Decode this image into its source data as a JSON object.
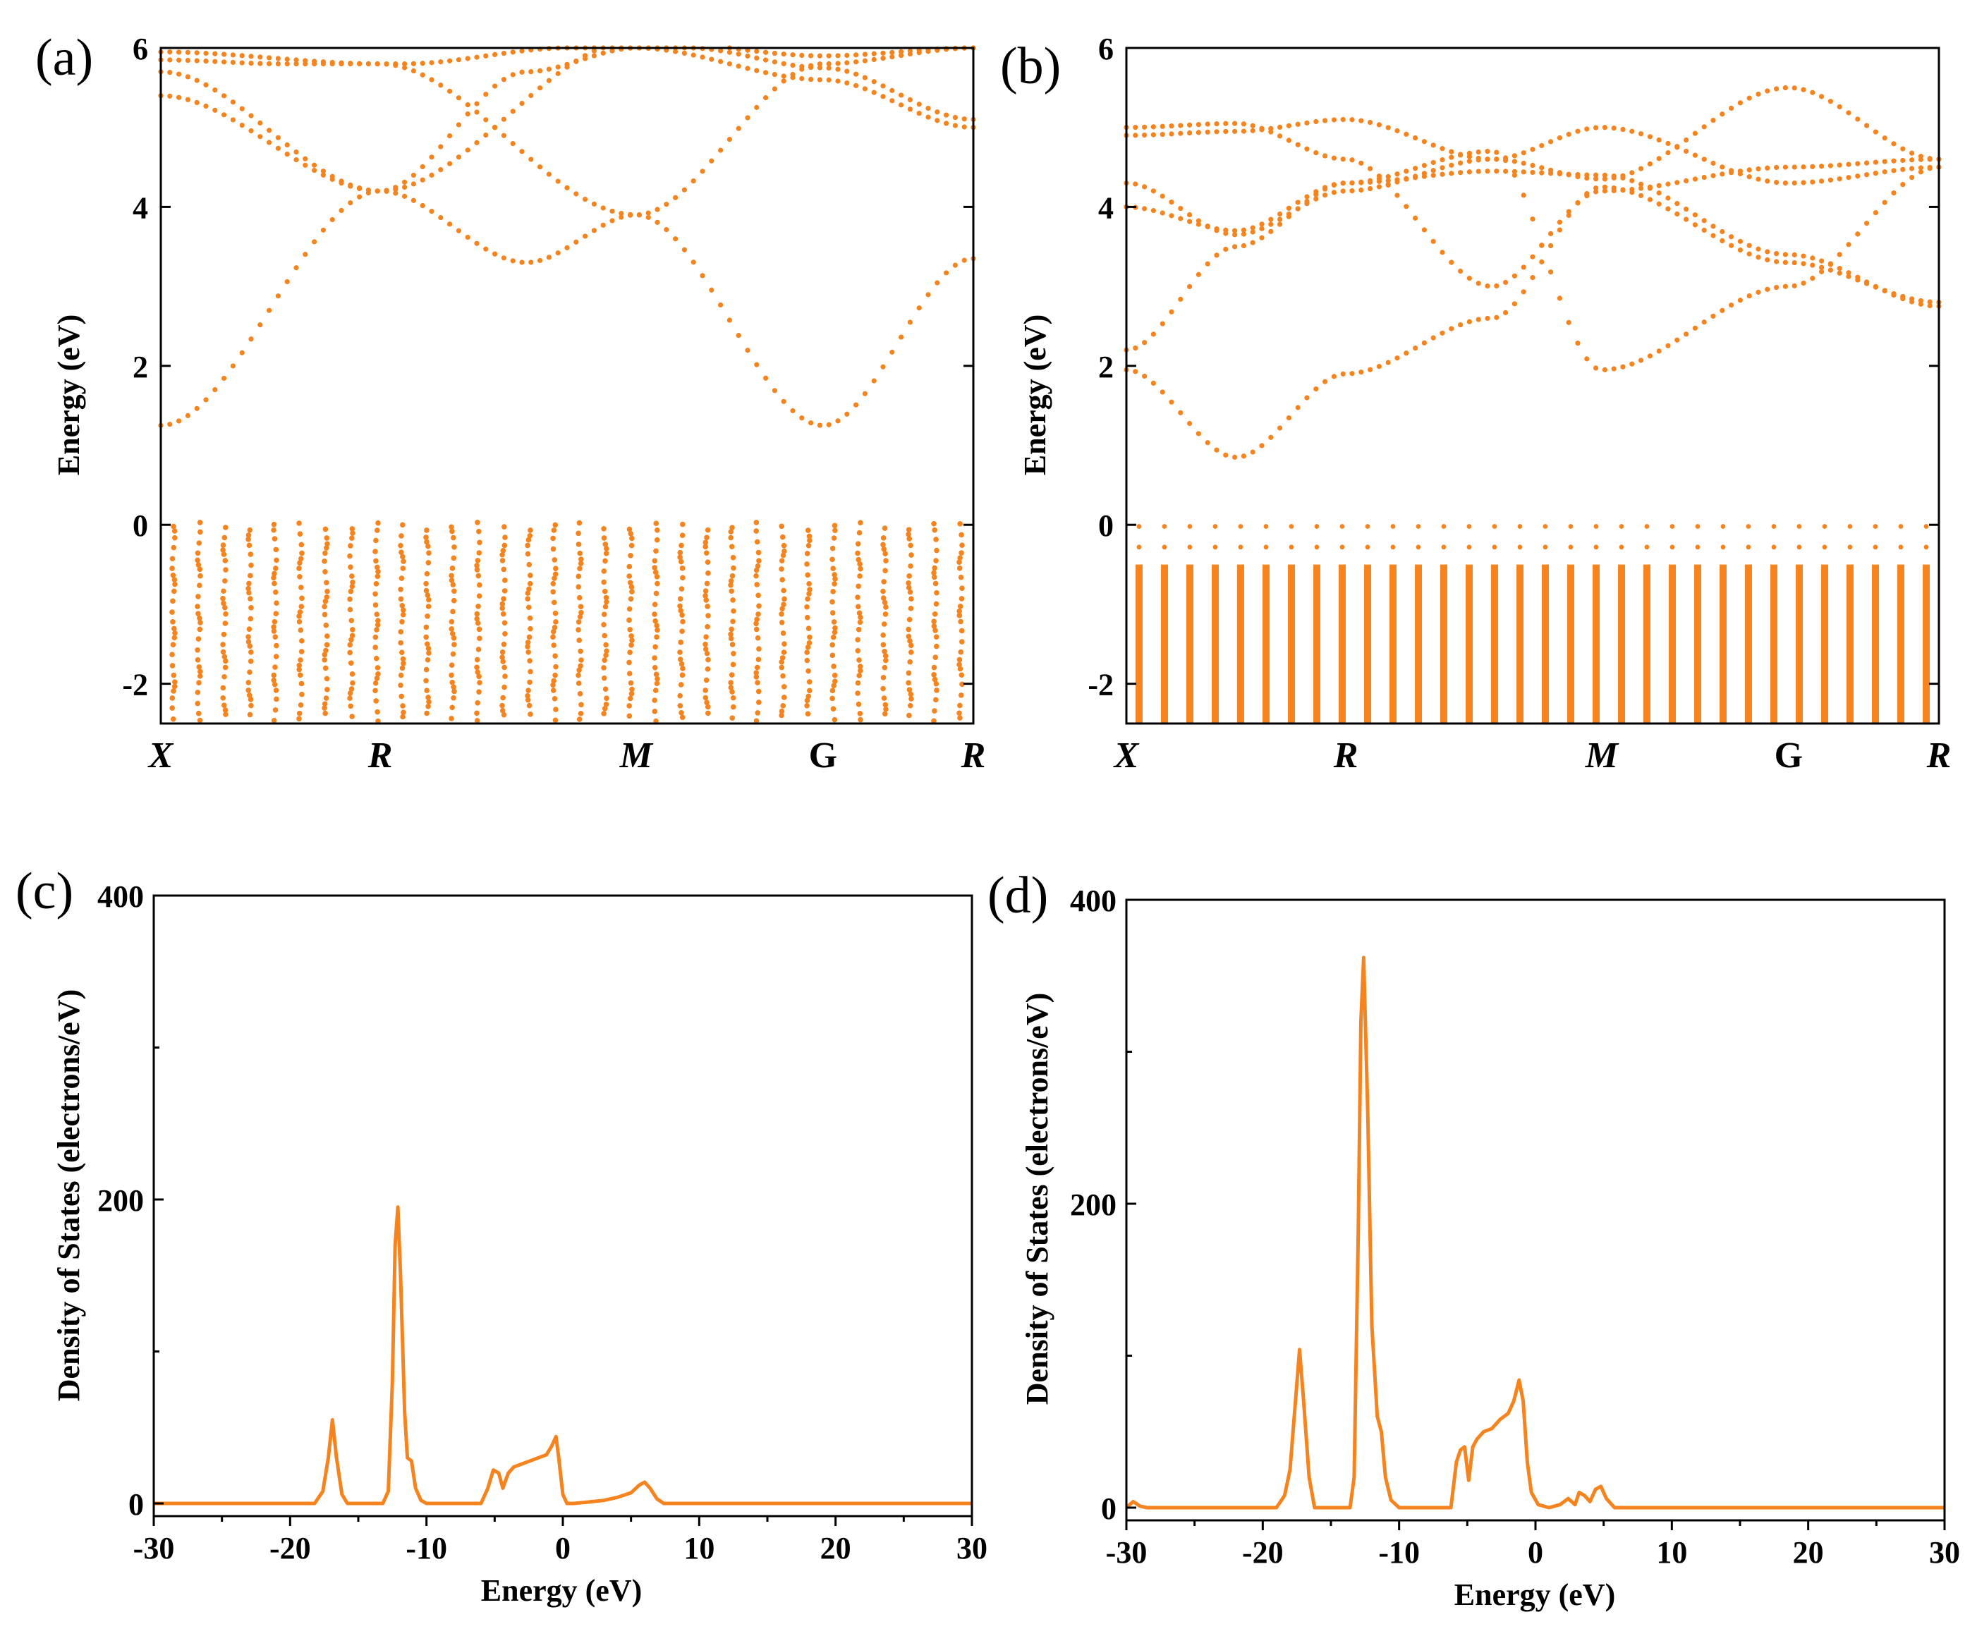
{
  "figure": {
    "series_color": "#F5841F"
  },
  "chart_data": [
    {
      "panel": "(a)",
      "type": "scatter",
      "description_kind": "band-structure",
      "xlabel": "",
      "ylabel": "Energy (eV)",
      "ylim": [
        -2.5,
        6
      ],
      "yticks": [
        -2,
        0,
        2,
        4,
        6
      ],
      "ytick_labels": [
        "-2",
        "0",
        "2",
        "4",
        "6"
      ],
      "kpoints": [
        {
          "label": "X",
          "pos": 0.0,
          "italic": true
        },
        {
          "label": "R",
          "pos": 0.27,
          "italic": true
        },
        {
          "label": "M",
          "pos": 0.585,
          "italic": true
        },
        {
          "label": "G",
          "pos": 0.815,
          "italic": false
        },
        {
          "label": "R",
          "pos": 1.0,
          "italic": true
        }
      ],
      "conduction_bands": [
        {
          "name": "cb1",
          "points": [
            [
              0,
              1.25
            ],
            [
              0.27,
              4.2
            ],
            [
              0.45,
              3.3
            ],
            [
              0.585,
              3.9
            ],
            [
              0.815,
              1.25
            ],
            [
              1.0,
              3.35
            ]
          ]
        },
        {
          "name": "cb2",
          "points": [
            [
              0,
              5.7
            ],
            [
              0.27,
              4.2
            ],
            [
              0.585,
              6.1
            ],
            [
              0.815,
              5.9
            ],
            [
              1.0,
              6.0
            ]
          ]
        },
        {
          "name": "cb3",
          "points": [
            [
              0,
              5.4
            ],
            [
              0.27,
              4.2
            ],
            [
              0.45,
              5.7
            ],
            [
              0.585,
              6.0
            ],
            [
              0.815,
              5.6
            ],
            [
              1.0,
              5.0
            ]
          ]
        },
        {
          "name": "cb4",
          "points": [
            [
              0,
              5.95
            ],
            [
              0.27,
              5.8
            ],
            [
              0.585,
              3.9
            ],
            [
              0.815,
              5.8
            ],
            [
              1.0,
              6.0
            ]
          ]
        },
        {
          "name": "cb5",
          "points": [
            [
              0.0,
              5.85
            ],
            [
              0.15,
              5.8
            ],
            [
              0.3,
              5.8
            ],
            [
              0.5,
              6.0
            ],
            [
              0.65,
              6.0
            ],
            [
              0.815,
              5.75
            ],
            [
              1.0,
              5.1
            ]
          ]
        }
      ],
      "valence_columns": 32,
      "valence_range": [
        -2.5,
        0
      ]
    },
    {
      "panel": "(b)",
      "type": "scatter",
      "description_kind": "band-structure",
      "xlabel": "",
      "ylabel": "Energy (eV)",
      "ylim": [
        -2.5,
        6
      ],
      "yticks": [
        -2,
        0,
        2,
        4,
        6
      ],
      "ytick_labels": [
        "-2",
        "0",
        "2",
        "4",
        "6"
      ],
      "kpoints": [
        {
          "label": "X",
          "pos": 0.0,
          "italic": true
        },
        {
          "label": "R",
          "pos": 0.27,
          "italic": true
        },
        {
          "label": "M",
          "pos": 0.585,
          "italic": true
        },
        {
          "label": "G",
          "pos": 0.815,
          "italic": false
        },
        {
          "label": "R",
          "pos": 1.0,
          "italic": true
        }
      ],
      "conduction_bands": [
        {
          "name": "cb1",
          "points": [
            [
              0,
              1.95
            ],
            [
              0.135,
              0.85
            ],
            [
              0.27,
              1.9
            ],
            [
              0.45,
              2.6
            ],
            [
              0.585,
              4.25
            ],
            [
              0.815,
              3.3
            ],
            [
              1.0,
              2.8
            ]
          ]
        },
        {
          "name": "cb2",
          "points": [
            [
              0,
              2.2
            ],
            [
              0.135,
              3.5
            ],
            [
              0.27,
              4.3
            ],
            [
              0.45,
              4.7
            ],
            [
              0.585,
              1.95
            ],
            [
              0.815,
              3.0
            ],
            [
              1.0,
              4.5
            ]
          ]
        },
        {
          "name": "cb3",
          "points": [
            [
              0,
              4.3
            ],
            [
              0.135,
              3.65
            ],
            [
              0.27,
              4.2
            ],
            [
              0.45,
              4.6
            ],
            [
              0.585,
              4.35
            ],
            [
              0.815,
              5.5
            ],
            [
              1.0,
              4.6
            ]
          ]
        },
        {
          "name": "cb4",
          "points": [
            [
              0,
              4.0
            ],
            [
              0.135,
              3.7
            ],
            [
              0.27,
              4.3
            ],
            [
              0.45,
              4.45
            ],
            [
              0.585,
              4.4
            ],
            [
              0.815,
              3.4
            ],
            [
              1.0,
              2.75
            ]
          ]
        },
        {
          "name": "cb5",
          "points": [
            [
              0,
              5.0
            ],
            [
              0.135,
              5.05
            ],
            [
              0.27,
              4.6
            ],
            [
              0.45,
              3.0
            ],
            [
              0.585,
              4.2
            ],
            [
              0.815,
              4.5
            ],
            [
              1.0,
              4.6
            ]
          ]
        },
        {
          "name": "cb6",
          "points": [
            [
              0,
              4.9
            ],
            [
              0.135,
              4.95
            ],
            [
              0.27,
              5.1
            ],
            [
              0.45,
              4.6
            ],
            [
              0.585,
              5.0
            ],
            [
              0.815,
              4.3
            ],
            [
              1.0,
              4.5
            ]
          ]
        }
      ],
      "valence_columns": 32,
      "valence_range": [
        -2.5,
        0
      ]
    },
    {
      "panel": "(c)",
      "type": "line",
      "description_kind": "density-of-states",
      "xlabel": "Energy (eV)",
      "ylabel": "Density of States (electrons/eV)",
      "xlim": [
        -30,
        30
      ],
      "ylim": [
        0,
        400
      ],
      "xticks": [
        -30,
        -20,
        -10,
        0,
        10,
        20,
        30
      ],
      "xtick_labels": [
        "-30",
        "-20",
        "-10",
        "0",
        "10",
        "20",
        "30"
      ],
      "yticks": [
        0,
        200,
        400
      ],
      "ytick_labels": [
        "0",
        "200",
        "400"
      ],
      "x": [
        -30,
        -18.2,
        -17.6,
        -17.2,
        -16.9,
        -16.6,
        -16.2,
        -15.8,
        -13.2,
        -12.8,
        -12.5,
        -12.3,
        -12.1,
        -11.9,
        -11.6,
        -11.4,
        -11.1,
        -10.8,
        -10.4,
        -10.0,
        -6.0,
        -5.5,
        -5.1,
        -4.7,
        -4.4,
        -4.0,
        -3.6,
        -3.0,
        -2.4,
        -1.8,
        -1.2,
        -0.8,
        -0.5,
        -0.3,
        0.0,
        0.3,
        0.8,
        2.0,
        3.0,
        4.0,
        5.0,
        5.6,
        6.0,
        6.4,
        6.9,
        7.4,
        30
      ],
      "values": [
        0,
        0,
        8,
        30,
        55,
        30,
        6,
        0,
        0,
        8,
        80,
        170,
        195,
        150,
        60,
        30,
        28,
        10,
        2,
        0,
        0,
        10,
        22,
        20,
        10,
        20,
        24,
        26,
        28,
        30,
        32,
        38,
        44,
        30,
        6,
        0,
        0,
        1,
        2,
        4,
        7,
        12,
        14,
        10,
        3,
        0,
        0
      ]
    },
    {
      "panel": "(d)",
      "type": "line",
      "description_kind": "density-of-states",
      "xlabel": "Energy (eV)",
      "ylabel": "Density of States (electrons/eV)",
      "xlim": [
        -30,
        30
      ],
      "ylim": [
        0,
        400
      ],
      "xticks": [
        -30,
        -20,
        -10,
        0,
        10,
        20,
        30
      ],
      "xtick_labels": [
        "-30",
        "-20",
        "-10",
        "0",
        "10",
        "20",
        "30"
      ],
      "yticks": [
        0,
        200,
        400
      ],
      "ytick_labels": [
        "0",
        "200",
        "400"
      ],
      "x": [
        -30,
        -29.5,
        -29.0,
        -28.5,
        -19.0,
        -18.4,
        -18.0,
        -17.6,
        -17.3,
        -17.0,
        -16.6,
        -16.2,
        -13.6,
        -13.3,
        -13.0,
        -12.8,
        -12.6,
        -12.3,
        -12.0,
        -11.6,
        -11.3,
        -11.0,
        -10.6,
        -10.0,
        -6.2,
        -5.8,
        -5.5,
        -5.2,
        -4.9,
        -4.6,
        -4.3,
        -3.8,
        -3.2,
        -2.6,
        -2.0,
        -1.6,
        -1.2,
        -0.9,
        -0.6,
        -0.3,
        0.2,
        1.0,
        1.8,
        2.4,
        2.9,
        3.2,
        3.6,
        4.0,
        4.4,
        4.8,
        5.2,
        5.8,
        30
      ],
      "values": [
        0,
        4,
        1,
        0,
        0,
        8,
        25,
        70,
        104,
        70,
        20,
        0,
        0,
        20,
        180,
        320,
        362,
        260,
        120,
        60,
        50,
        20,
        5,
        0,
        0,
        30,
        38,
        40,
        18,
        40,
        45,
        50,
        52,
        58,
        62,
        70,
        84,
        70,
        30,
        10,
        2,
        0,
        2,
        6,
        2,
        10,
        8,
        4,
        12,
        14,
        6,
        0,
        0
      ]
    }
  ]
}
